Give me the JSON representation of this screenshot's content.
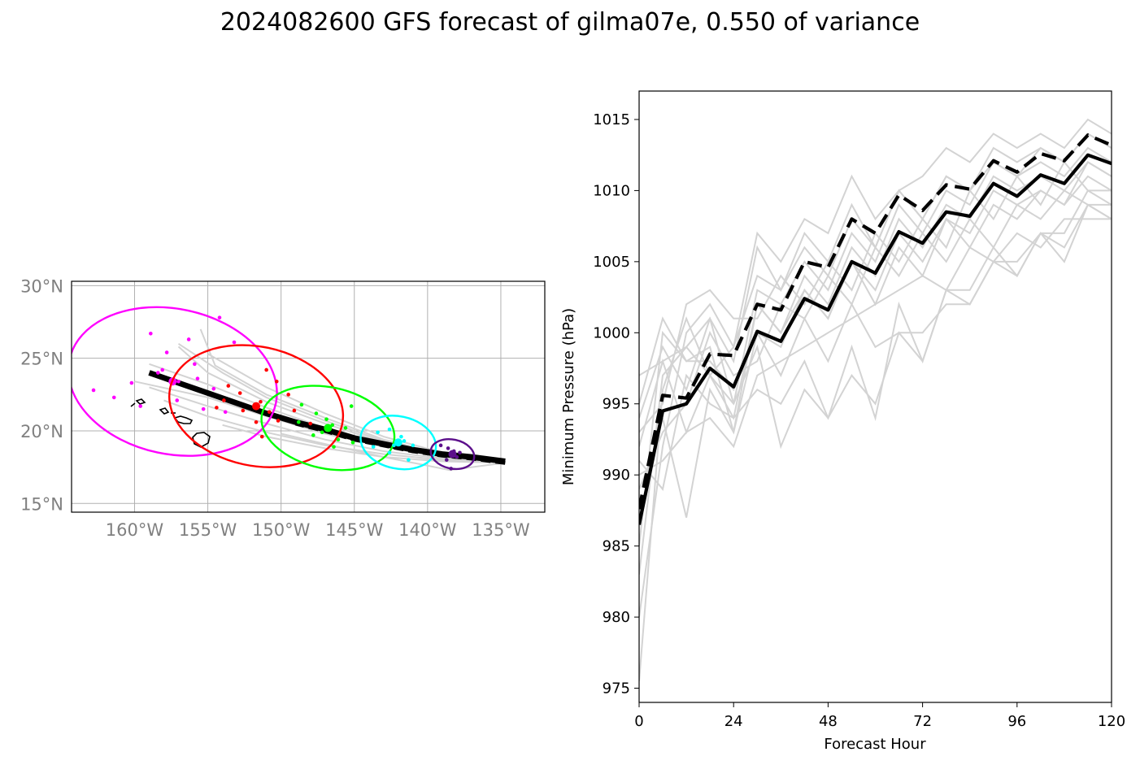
{
  "figure_title": "2024082600 GFS forecast of gilma07e, 0.550 of variance",
  "chart_data": [
    {
      "type": "scatter",
      "panel": "track-map",
      "x_ticks": [
        "160°W",
        "155°W",
        "150°W",
        "145°W",
        "140°W",
        "135°W"
      ],
      "y_ticks": [
        "15°N",
        "20°N",
        "25°N",
        "30°N"
      ],
      "xlim": [
        -164.3,
        -132.0
      ],
      "ylim": [
        14.4,
        30.3
      ],
      "grid": true,
      "ensemble_color": "#d3d3d3",
      "mean_track": {
        "color": "#000000",
        "points": [
          [
            -134.7,
            17.9
          ],
          [
            -137,
            18.2
          ],
          [
            -139,
            18.4
          ],
          [
            -141,
            18.7
          ],
          [
            -143,
            19.1
          ],
          [
            -145,
            19.5
          ],
          [
            -147,
            20.1
          ],
          [
            -149,
            20.6
          ],
          [
            -151,
            21.2
          ],
          [
            -153,
            21.9
          ],
          [
            -155,
            22.6
          ],
          [
            -157,
            23.3
          ],
          [
            -159,
            24.0
          ]
        ]
      },
      "control_track": {
        "color": "#000000",
        "dash": true,
        "points": [
          [
            -134.7,
            17.8
          ],
          [
            -137,
            18.1
          ],
          [
            -139,
            18.3
          ],
          [
            -141,
            18.6
          ],
          [
            -143,
            19.0
          ],
          [
            -145,
            19.4
          ],
          [
            -147,
            20.0
          ],
          [
            -149,
            20.5
          ]
        ]
      },
      "ensemble_tracks": [
        [
          [
            -134.7,
            17.8
          ],
          [
            -139,
            18.3
          ],
          [
            -143,
            19.2
          ],
          [
            -147,
            20.5
          ],
          [
            -151,
            22.0
          ],
          [
            -155,
            24.0
          ],
          [
            -157,
            25.8
          ]
        ],
        [
          [
            -134.7,
            17.8
          ],
          [
            -139,
            18.2
          ],
          [
            -143,
            19.0
          ],
          [
            -147,
            20.2
          ],
          [
            -151,
            21.6
          ],
          [
            -155,
            23.2
          ],
          [
            -159,
            24.6
          ]
        ],
        [
          [
            -134.7,
            17.8
          ],
          [
            -139,
            18.1
          ],
          [
            -143,
            18.6
          ],
          [
            -147,
            19.4
          ],
          [
            -151,
            20.5
          ],
          [
            -155,
            21.7
          ],
          [
            -159,
            23.0
          ]
        ],
        [
          [
            -134.7,
            17.9
          ],
          [
            -139,
            18.4
          ],
          [
            -143,
            19.4
          ],
          [
            -147,
            20.9
          ],
          [
            -151,
            22.5
          ],
          [
            -154.5,
            24.5
          ],
          [
            -155.5,
            27.0
          ]
        ],
        [
          [
            -134.7,
            17.8
          ],
          [
            -139,
            18.0
          ],
          [
            -143,
            18.4
          ],
          [
            -147,
            19.0
          ],
          [
            -151,
            19.9
          ],
          [
            -155,
            21.0
          ],
          [
            -158,
            22.1
          ]
        ],
        [
          [
            -134.7,
            17.9
          ],
          [
            -139,
            18.5
          ],
          [
            -143,
            19.6
          ],
          [
            -147,
            21.2
          ],
          [
            -151,
            23.0
          ],
          [
            -155,
            25.3
          ]
        ],
        [
          [
            -134.7,
            17.8
          ],
          [
            -139,
            18.2
          ],
          [
            -143,
            18.9
          ],
          [
            -147,
            19.8
          ],
          [
            -151,
            21.0
          ],
          [
            -155,
            22.3
          ],
          [
            -160,
            23.4
          ]
        ],
        [
          [
            -134.7,
            17.8
          ],
          [
            -139,
            17.9
          ],
          [
            -143,
            18.2
          ],
          [
            -147,
            18.8
          ],
          [
            -151,
            19.6
          ],
          [
            -154,
            20.4
          ]
        ],
        [
          [
            -134.7,
            17.8
          ],
          [
            -139,
            18.3
          ],
          [
            -143,
            19.3
          ],
          [
            -147,
            20.7
          ],
          [
            -151,
            22.3
          ],
          [
            -154,
            24.0
          ],
          [
            -157,
            26.0
          ]
        ],
        [
          [
            -134.7,
            17.8
          ],
          [
            -138.5,
            17.3
          ],
          [
            -140,
            17.6
          ],
          [
            -143,
            18.2
          ],
          [
            -147,
            19.1
          ],
          [
            -150,
            19.8
          ]
        ]
      ],
      "clusters": [
        {
          "color": "#ff00ff",
          "center": [
            -157.4,
            23.4
          ],
          "radius": [
            7.2,
            5.0
          ],
          "points": [
            [
              -162.8,
              22.8
            ],
            [
              -160.2,
              23.3
            ],
            [
              -158.9,
              26.7
            ],
            [
              -158.1,
              24.2
            ],
            [
              -157.8,
              25.4
            ],
            [
              -157.1,
              22.1
            ],
            [
              -156.3,
              26.3
            ],
            [
              -155.9,
              24.6
            ],
            [
              -155.3,
              21.5
            ],
            [
              -154.6,
              22.9
            ],
            [
              -154.2,
              27.8
            ],
            [
              -153.8,
              21.3
            ],
            [
              -153.2,
              26.1
            ],
            [
              -155.7,
              23.6
            ],
            [
              -158.4,
              24.0
            ],
            [
              -157.0,
              23.4
            ],
            [
              -161.4,
              22.3
            ],
            [
              -159.6,
              21.7
            ]
          ]
        },
        {
          "color": "#ff0000",
          "center": [
            -151.7,
            21.7
          ],
          "radius": [
            6.0,
            4.1
          ],
          "points": [
            [
              -151.0,
              24.2
            ],
            [
              -150.3,
              23.4
            ],
            [
              -149.5,
              22.5
            ],
            [
              -149.1,
              21.4
            ],
            [
              -150.2,
              20.7
            ],
            [
              -151.7,
              20.6
            ],
            [
              -152.6,
              21.4
            ],
            [
              -153.9,
              22.1
            ],
            [
              -154.4,
              21.6
            ],
            [
              -152.8,
              22.6
            ],
            [
              -151.3,
              19.6
            ],
            [
              -148.0,
              20.5
            ],
            [
              -151.4,
              22.0
            ],
            [
              -150.8,
              21.3
            ],
            [
              -153.6,
              23.1
            ]
          ]
        },
        {
          "color": "#00ff00",
          "center": [
            -146.8,
            20.2
          ],
          "radius": [
            4.6,
            2.8
          ],
          "points": [
            [
              -148.6,
              21.8
            ],
            [
              -147.6,
              21.2
            ],
            [
              -146.5,
              20.4
            ],
            [
              -145.6,
              20.2
            ],
            [
              -146.1,
              19.4
            ],
            [
              -146.4,
              18.9
            ],
            [
              -147.8,
              19.7
            ],
            [
              -148.8,
              20.6
            ],
            [
              -145.2,
              21.7
            ],
            [
              -146.9,
              20.8
            ],
            [
              -145.1,
              19.2
            ],
            [
              -147.2,
              19.9
            ]
          ]
        },
        {
          "color": "#00ffff",
          "center": [
            -142.0,
            19.2
          ],
          "radius": [
            2.6,
            1.8
          ],
          "points": [
            [
              -143.4,
              19.9
            ],
            [
              -142.6,
              20.1
            ],
            [
              -141.8,
              19.6
            ],
            [
              -141.0,
              19.0
            ],
            [
              -141.3,
              18.0
            ],
            [
              -142.6,
              18.5
            ],
            [
              -143.7,
              18.9
            ],
            [
              -142.3,
              19.0
            ],
            [
              -141.6,
              19.3
            ]
          ]
        },
        {
          "color": "#5c0f8b",
          "center": [
            -138.3,
            18.4
          ],
          "radius": [
            1.5,
            1.0
          ],
          "points": [
            [
              -139.1,
              19.0
            ],
            [
              -138.6,
              18.8
            ],
            [
              -138.0,
              18.2
            ],
            [
              -137.8,
              18.5
            ],
            [
              -138.4,
              17.4
            ],
            [
              -138.7,
              18.0
            ],
            [
              -138.2,
              18.6
            ]
          ]
        }
      ]
    },
    {
      "type": "line",
      "panel": "pressure",
      "xlabel": "Forecast Hour",
      "ylabel": "Minimum Pressure (hPa)",
      "xlim": [
        0,
        120
      ],
      "ylim": [
        974,
        1017
      ],
      "x_ticks": [
        0,
        24,
        48,
        72,
        96,
        120
      ],
      "y_ticks": [
        975,
        980,
        985,
        990,
        995,
        1000,
        1005,
        1010,
        1015
      ],
      "x": [
        0,
        6,
        12,
        18,
        24,
        30,
        36,
        42,
        48,
        54,
        60,
        66,
        72,
        78,
        84,
        90,
        96,
        102,
        108,
        114,
        120
      ],
      "series": [
        {
          "style": "mean",
          "color": "#000000",
          "values": [
            986.5,
            994.5,
            995,
            997.5,
            996.2,
            1000.1,
            999.4,
            1002.4,
            1001.6,
            1005,
            1004.2,
            1007.1,
            1006.3,
            1008.5,
            1008.2,
            1010.5,
            1009.6,
            1011.1,
            1010.5,
            1012.5,
            1011.9
          ]
        },
        {
          "style": "control",
          "color": "#000000",
          "values": [
            987.6,
            995.6,
            995.4,
            998.5,
            998.4,
            1002,
            1001.6,
            1005,
            1004.6,
            1008,
            1007,
            1009.7,
            1008.6,
            1010.4,
            1010.1,
            1012.1,
            1011.3,
            1012.6,
            1012.1,
            1013.9,
            1013.2
          ]
        },
        {
          "style": "member",
          "color": "#d3d3d3",
          "values": [
            975.5,
            996,
            1001,
            997,
            999,
            1007,
            1005,
            1008,
            1007,
            1011,
            1008,
            1010,
            1011,
            1013,
            1012,
            1014,
            1013,
            1014,
            1013,
            1015,
            1014
          ]
        },
        {
          "style": "member",
          "color": "#d3d3d3",
          "values": [
            980,
            992,
            1000,
            1002,
            999,
            1004,
            1003,
            1006,
            1004,
            1008,
            1006,
            1010,
            1008,
            1011,
            1010,
            1013,
            1012,
            1013,
            1012,
            1014,
            1013
          ]
        },
        {
          "style": "member",
          "color": "#d3d3d3",
          "values": [
            983,
            997,
            999,
            1001,
            995,
            1003,
            1002,
            1005,
            1003,
            1007,
            1005,
            1009,
            1007,
            1010,
            1009,
            1012,
            1011,
            1012,
            1011,
            1013,
            1012
          ]
        },
        {
          "style": "member",
          "color": "#d3d3d3",
          "values": [
            985,
            1000,
            998,
            999,
            993,
            1002,
            1000,
            1004,
            1002,
            1006,
            1004,
            1008,
            1006,
            1009,
            1008,
            1011,
            1010,
            1011,
            1010,
            1012,
            1011
          ]
        },
        {
          "style": "member",
          "color": "#d3d3d3",
          "values": [
            987,
            994,
            987,
            996,
            993,
            1000,
            999,
            1003,
            1001,
            1005,
            1003,
            1007,
            1005,
            1008,
            1007,
            1010,
            1009,
            1010,
            1009,
            1011,
            1010
          ]
        },
        {
          "style": "member",
          "color": "#d3d3d3",
          "values": [
            989,
            993,
            995,
            1000,
            997,
            998,
            1002,
            1001,
            1004,
            1002,
            1006,
            1004,
            1007,
            1005,
            1008,
            1006,
            1009,
            1008,
            1010,
            1009,
            1009
          ]
        },
        {
          "style": "member",
          "color": "#d3d3d3",
          "values": [
            990,
            991,
            993,
            994,
            992,
            997,
            998,
            999,
            1000,
            1001,
            1002,
            1003,
            1004,
            1003,
            1006,
            1005,
            1007,
            1006,
            1008,
            1008,
            1008
          ]
        },
        {
          "style": "member",
          "color": "#d3d3d3",
          "values": [
            991,
            989,
            997,
            995,
            994,
            996,
            995,
            998,
            994,
            997,
            995,
            1000,
            998,
            1003,
            1002,
            1005,
            1004,
            1007,
            1006,
            1009,
            1008
          ]
        },
        {
          "style": "member",
          "color": "#d3d3d3",
          "values": [
            992,
            998,
            993,
            997,
            995,
            999,
            992,
            996,
            994,
            999,
            994,
            1002,
            998,
            1003,
            1003,
            1006,
            1004,
            1007,
            1005,
            1009,
            1008
          ]
        },
        {
          "style": "member",
          "color": "#d3d3d3",
          "values": [
            993,
            995,
            1002,
            1003,
            1001,
            1001,
            1004,
            1002,
            1005,
            1003,
            1007,
            1005,
            1008,
            1006,
            1010,
            1008,
            1011,
            1009,
            1012,
            1010,
            1010
          ]
        },
        {
          "style": "member",
          "color": "#d3d3d3",
          "values": [
            994,
            999,
            996,
            1001,
            998,
            1006,
            1003,
            1007,
            1005,
            1009,
            1006,
            1010,
            1008,
            1011,
            1010,
            1012,
            1011,
            1013,
            1012,
            1014,
            1013
          ]
        },
        {
          "style": "member",
          "color": "#d3d3d3",
          "values": [
            995,
            1001,
            998,
            998,
            996,
            1000,
            997,
            1001,
            998,
            1002,
            999,
            1000,
            1000,
            1002,
            1002,
            1005,
            1005,
            1007,
            1007,
            1010,
            1009
          ]
        },
        {
          "style": "member",
          "color": "#d3d3d3",
          "values": [
            997,
            998,
            999,
            997,
            994,
            1002,
            1000,
            1003,
            1001,
            1005,
            1002,
            1006,
            1004,
            1008,
            1006,
            1009,
            1008,
            1010,
            1009,
            1012,
            1011
          ]
        }
      ]
    }
  ]
}
